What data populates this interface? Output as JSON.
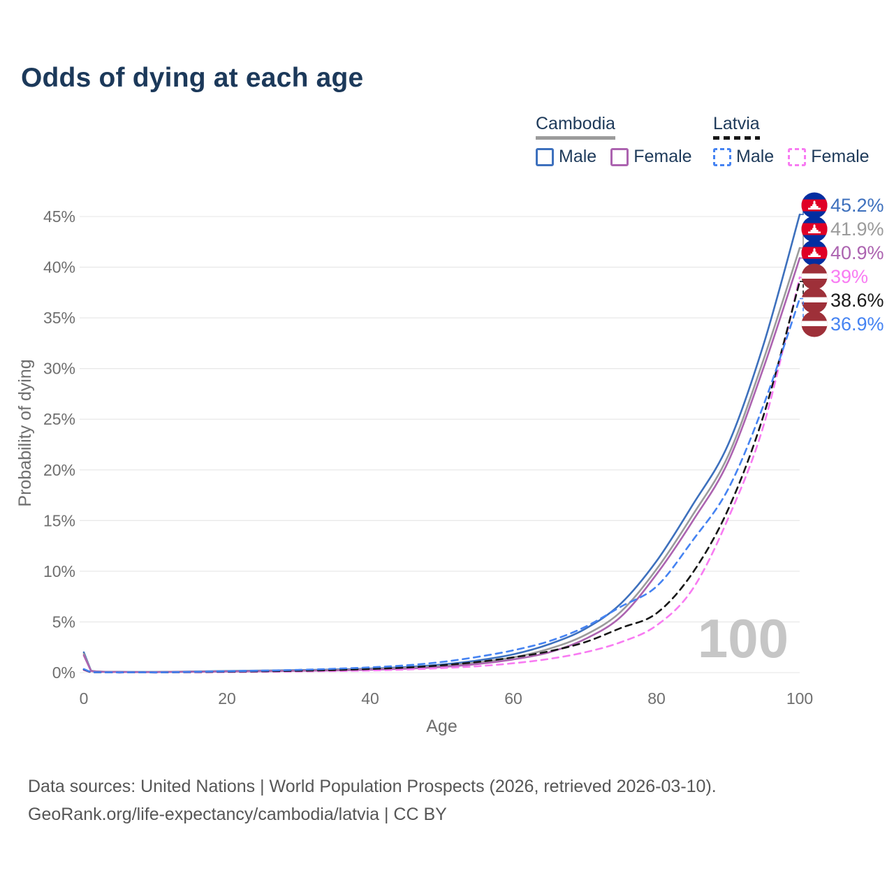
{
  "title": "Odds of dying at each age",
  "legend": {
    "groups": [
      {
        "country": "Cambodia",
        "line_style": "solid",
        "line_color": "#9b9b9b",
        "items": [
          {
            "label": "Male",
            "color": "#3d70bd",
            "dash": "solid"
          },
          {
            "label": "Female",
            "color": "#ac63b0",
            "dash": "solid"
          }
        ]
      },
      {
        "country": "Latvia",
        "line_style": "dashed",
        "line_color": "#171717",
        "items": [
          {
            "label": "Male",
            "color": "#4583f2",
            "dash": "dashed"
          },
          {
            "label": "Female",
            "color": "#f87bf2",
            "dash": "dashed"
          }
        ]
      }
    ]
  },
  "chart_data": {
    "type": "line",
    "title": "Odds of dying at each age",
    "xlabel": "Age",
    "ylabel": "Probability of dying",
    "xlim": [
      0,
      100
    ],
    "ylim_percent": [
      0,
      45
    ],
    "x_ticks": [
      0,
      20,
      40,
      60,
      80,
      100
    ],
    "y_ticks_percent": [
      0,
      5,
      10,
      15,
      20,
      25,
      30,
      35,
      40,
      45
    ],
    "grid": "horizontal-only",
    "legend_position": "top-right",
    "watermark": "100",
    "x": [
      0,
      1,
      5,
      10,
      15,
      20,
      25,
      30,
      35,
      40,
      45,
      50,
      55,
      60,
      65,
      70,
      75,
      80,
      85,
      90,
      95,
      100
    ],
    "series": [
      {
        "name": "Cambodia Male",
        "country": "Cambodia",
        "sex": "Male",
        "flag": "kh",
        "color": "#3d70bd",
        "dash": "solid",
        "end_label": "45.2%",
        "end_value": 45.2,
        "values": [
          2.0,
          0.2,
          0.08,
          0.07,
          0.11,
          0.16,
          0.2,
          0.25,
          0.31,
          0.4,
          0.55,
          0.8,
          1.2,
          1.8,
          2.8,
          4.3,
          6.8,
          11.0,
          16.5,
          22.5,
          32.5,
          45.2
        ]
      },
      {
        "name": "Cambodia Both sexes",
        "country": "Cambodia",
        "sex": "Both",
        "flag": "kh",
        "color": "#9b9b9b",
        "dash": "solid",
        "end_label": "41.9%",
        "end_value": 41.9,
        "values": [
          1.85,
          0.18,
          0.07,
          0.06,
          0.09,
          0.13,
          0.17,
          0.21,
          0.26,
          0.34,
          0.46,
          0.66,
          1.0,
          1.5,
          2.35,
          3.7,
          6.0,
          10.2,
          15.5,
          21.4,
          31.0,
          41.9
        ]
      },
      {
        "name": "Cambodia Female",
        "country": "Cambodia",
        "sex": "Female",
        "flag": "kh",
        "color": "#ac63b0",
        "dash": "solid",
        "end_label": "40.9%",
        "end_value": 40.9,
        "values": [
          1.7,
          0.16,
          0.06,
          0.05,
          0.08,
          0.11,
          0.13,
          0.17,
          0.21,
          0.28,
          0.38,
          0.55,
          0.85,
          1.3,
          2.0,
          3.3,
          5.5,
          9.7,
          14.9,
          20.8,
          30.2,
          40.9
        ]
      },
      {
        "name": "Latvia Female",
        "country": "Latvia",
        "sex": "Female",
        "flag": "lv",
        "color": "#f87bf2",
        "dash": "dashed",
        "end_label": "39%",
        "end_value": 39.0,
        "values": [
          0.25,
          0.03,
          0.01,
          0.01,
          0.03,
          0.05,
          0.08,
          0.11,
          0.15,
          0.21,
          0.3,
          0.44,
          0.63,
          0.92,
          1.35,
          2.0,
          3.0,
          4.65,
          8.2,
          15.2,
          24.5,
          39.0
        ]
      },
      {
        "name": "Latvia Both sexes",
        "country": "Latvia",
        "sex": "Both",
        "flag": "lv",
        "color": "#171717",
        "dash": "dashed",
        "end_label": "38.6%",
        "end_value": 38.6,
        "values": [
          0.3,
          0.03,
          0.015,
          0.015,
          0.05,
          0.09,
          0.13,
          0.18,
          0.25,
          0.35,
          0.49,
          0.72,
          1.05,
          1.5,
          2.1,
          3.0,
          4.4,
          5.85,
          9.8,
          16.1,
          25.5,
          38.6
        ]
      },
      {
        "name": "Latvia Male",
        "country": "Latvia",
        "sex": "Male",
        "flag": "lv",
        "color": "#4583f2",
        "dash": "dashed",
        "end_label": "36.9%",
        "end_value": 36.9,
        "values": [
          0.35,
          0.04,
          0.02,
          0.02,
          0.07,
          0.13,
          0.19,
          0.27,
          0.38,
          0.52,
          0.72,
          1.05,
          1.55,
          2.2,
          3.1,
          4.5,
          6.5,
          8.5,
          13.0,
          18.1,
          26.5,
          36.9
        ]
      }
    ],
    "flag_colors": {
      "kh_blue": "#032ea1",
      "kh_red": "#e00025",
      "kh_white": "#ffffff",
      "lv_carmine": "#9e3039",
      "lv_white": "#ffffff"
    }
  },
  "colors": {
    "title_text": "#1c395a",
    "axis_text": "#6f6f6f",
    "gridline": "#e9e9e9",
    "watermark": "#c6c6c6",
    "footer_text": "#565656"
  },
  "footer": {
    "line1": "Data sources: United Nations | World Population Prospects (2026, retrieved 2026-03-10).",
    "line2": "GeoRank.org/life-expectancy/cambodia/latvia | CC BY"
  }
}
